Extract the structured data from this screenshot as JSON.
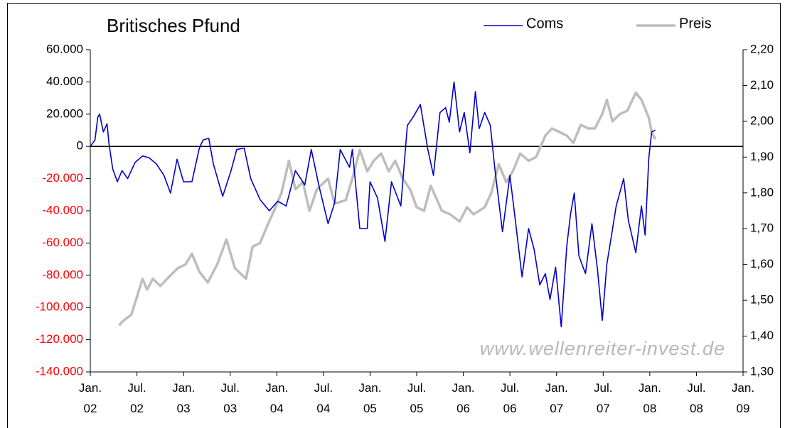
{
  "chart_data": {
    "type": "line",
    "title": "Britisches Pfund",
    "watermark": "www.wellenreiter-invest.de",
    "legend": "top-right",
    "grid": false,
    "zero_line": true,
    "tick_color": "#000000",
    "negative_tick_color": "#ff0000",
    "xlim": [
      2002,
      2009
    ],
    "xticks": [
      {
        "value": 2002,
        "label": "Jan.\n02"
      },
      {
        "value": 2002.5,
        "label": "Jul.\n02"
      },
      {
        "value": 2003,
        "label": "Jan.\n03"
      },
      {
        "value": 2003.5,
        "label": "Jul.\n03"
      },
      {
        "value": 2004,
        "label": "Jan.\n04"
      },
      {
        "value": 2004.5,
        "label": "Jul.\n04"
      },
      {
        "value": 2005,
        "label": "Jan.\n05"
      },
      {
        "value": 2005.5,
        "label": "Jul.\n05"
      },
      {
        "value": 2006,
        "label": "Jan.\n06"
      },
      {
        "value": 2006.5,
        "label": "Jul.\n06"
      },
      {
        "value": 2007,
        "label": "Jan.\n07"
      },
      {
        "value": 2007.5,
        "label": "Jul.\n07"
      },
      {
        "value": 2008,
        "label": "Jan.\n08"
      },
      {
        "value": 2008.5,
        "label": "Jul.\n08"
      },
      {
        "value": 2009,
        "label": "Jan.\n09"
      }
    ],
    "ylim": [
      -140000,
      60000
    ],
    "yticks": [
      {
        "value": -140000,
        "label": "-140.000"
      },
      {
        "value": -120000,
        "label": "-120.000"
      },
      {
        "value": -100000,
        "label": "-100.000"
      },
      {
        "value": -80000,
        "label": "-80.000"
      },
      {
        "value": -60000,
        "label": "-60.000"
      },
      {
        "value": -40000,
        "label": "-40.000"
      },
      {
        "value": -20000,
        "label": "-20.000"
      },
      0,
      {
        "value": 20000,
        "label": "20.000"
      },
      {
        "value": 40000,
        "label": "40.000"
      },
      {
        "value": 60000,
        "label": "60.000"
      }
    ],
    "y2lim": [
      1.3,
      2.2
    ],
    "y2ticks": [
      {
        "value": 1.3,
        "label": "1,30"
      },
      {
        "value": 1.4,
        "label": "1,40"
      },
      {
        "value": 1.5,
        "label": "1,50"
      },
      {
        "value": 1.6,
        "label": "1,60"
      },
      {
        "value": 1.7,
        "label": "1,70"
      },
      {
        "value": 1.8,
        "label": "1,80"
      },
      {
        "value": 1.9,
        "label": "1,90"
      },
      {
        "value": 2.0,
        "label": "2,00"
      },
      {
        "value": 2.1,
        "label": "2,10"
      },
      {
        "value": 2.2,
        "label": "2,20"
      }
    ],
    "series": [
      {
        "name": "Preis",
        "color": "#bdbdbd",
        "axis": "y2",
        "x": [
          2002.31,
          2002.34,
          2002.44,
          2002.5,
          2002.56,
          2002.61,
          2002.67,
          2002.75,
          2002.86,
          2002.94,
          2003.02,
          2003.09,
          2003.17,
          2003.26,
          2003.36,
          2003.46,
          2003.55,
          2003.67,
          2003.74,
          2003.82,
          2003.9,
          2003.97,
          2004.05,
          2004.13,
          2004.2,
          2004.28,
          2004.35,
          2004.43,
          2004.55,
          2004.62,
          2004.74,
          2004.81,
          2004.89,
          2004.97,
          2005.04,
          2005.12,
          2005.2,
          2005.27,
          2005.35,
          2005.43,
          2005.5,
          2005.58,
          2005.65,
          2005.77,
          2005.86,
          2005.96,
          2006.04,
          2006.11,
          2006.23,
          2006.3,
          2006.38,
          2006.46,
          2006.53,
          2006.61,
          2006.7,
          2006.78,
          2006.88,
          2006.95,
          2007.03,
          2007.11,
          2007.18,
          2007.26,
          2007.34,
          2007.41,
          2007.49,
          2007.54,
          2007.6,
          2007.68,
          2007.76,
          2007.85,
          2007.91,
          2007.99,
          2008.02,
          2008.06
        ],
        "values": [
          1.43,
          1.44,
          1.46,
          1.51,
          1.56,
          1.53,
          1.56,
          1.54,
          1.57,
          1.59,
          1.6,
          1.63,
          1.58,
          1.55,
          1.6,
          1.67,
          1.59,
          1.56,
          1.65,
          1.66,
          1.71,
          1.75,
          1.8,
          1.89,
          1.81,
          1.83,
          1.75,
          1.81,
          1.84,
          1.77,
          1.78,
          1.84,
          1.92,
          1.86,
          1.89,
          1.91,
          1.86,
          1.89,
          1.84,
          1.81,
          1.76,
          1.75,
          1.82,
          1.75,
          1.74,
          1.72,
          1.76,
          1.74,
          1.76,
          1.8,
          1.88,
          1.83,
          1.86,
          1.91,
          1.89,
          1.9,
          1.96,
          1.98,
          1.97,
          1.96,
          1.94,
          1.99,
          1.98,
          1.98,
          2.02,
          2.06,
          2.0,
          2.02,
          2.03,
          2.08,
          2.06,
          2.01,
          1.97,
          1.95
        ]
      },
      {
        "name": "Coms",
        "color": "#0000cc",
        "axis": "y",
        "x": [
          2002.0,
          2002.05,
          2002.08,
          2002.1,
          2002.14,
          2002.18,
          2002.2,
          2002.24,
          2002.29,
          2002.34,
          2002.4,
          2002.48,
          2002.56,
          2002.63,
          2002.71,
          2002.79,
          2002.86,
          2002.93,
          2003.0,
          2003.09,
          2003.17,
          2003.21,
          2003.27,
          2003.32,
          2003.42,
          2003.51,
          2003.57,
          2003.65,
          2003.72,
          2003.82,
          2003.92,
          2004.01,
          2004.1,
          2004.2,
          2004.3,
          2004.37,
          2004.45,
          2004.55,
          2004.62,
          2004.68,
          2004.78,
          2004.81,
          2004.89,
          2004.97,
          2005.0,
          2005.08,
          2005.16,
          2005.23,
          2005.33,
          2005.4,
          2005.46,
          2005.54,
          2005.62,
          2005.68,
          2005.75,
          2005.81,
          2005.85,
          2005.9,
          2005.96,
          2006.01,
          2006.07,
          2006.13,
          2006.17,
          2006.23,
          2006.29,
          2006.34,
          2006.42,
          2006.5,
          2006.55,
          2006.63,
          2006.7,
          2006.76,
          2006.82,
          2006.88,
          2006.93,
          2006.99,
          2007.05,
          2007.11,
          2007.15,
          2007.19,
          2007.24,
          2007.31,
          2007.38,
          2007.44,
          2007.49,
          2007.54,
          2007.59,
          2007.64,
          2007.72,
          2007.77,
          2007.85,
          2007.91,
          2007.95,
          2007.99,
          2008.02,
          2008.06
        ],
        "values": [
          0,
          4000,
          18000,
          20000,
          9000,
          14000,
          2000,
          -14000,
          -22000,
          -15000,
          -20000,
          -10000,
          -6000,
          -7000,
          -11000,
          -18000,
          -29000,
          -8000,
          -22000,
          -22000,
          -1000,
          4000,
          5000,
          -11000,
          -31000,
          -15000,
          -2000,
          -1000,
          -20000,
          -33000,
          -40000,
          -34000,
          -37000,
          -15000,
          -24000,
          -2000,
          -24000,
          -48000,
          -35000,
          -2000,
          -13000,
          -2000,
          -51000,
          -51000,
          -22000,
          -32000,
          -59000,
          -22000,
          -37000,
          13000,
          18000,
          26000,
          -2000,
          -18000,
          21000,
          24000,
          15000,
          40000,
          9000,
          21000,
          -4000,
          34000,
          11000,
          21000,
          13000,
          -15000,
          -53000,
          -18000,
          -42000,
          -81000,
          -51000,
          -64000,
          -86000,
          -79000,
          -95000,
          -75000,
          -112000,
          -62000,
          -42000,
          -29000,
          -68000,
          -79000,
          -48000,
          -77000,
          -108000,
          -73000,
          -55000,
          -37000,
          -20000,
          -46000,
          -66000,
          -37000,
          -55000,
          -7000,
          9000,
          10000
        ]
      }
    ]
  }
}
